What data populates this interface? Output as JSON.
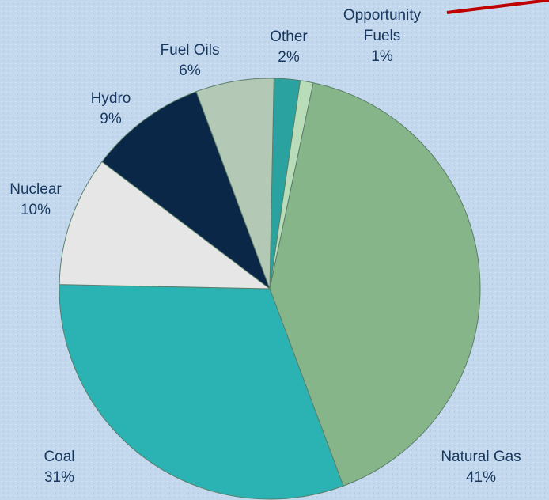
{
  "chart_data": {
    "type": "pie",
    "categories": [
      "Other",
      "Opportunity Fuels",
      "Natural Gas",
      "Coal",
      "Nuclear",
      "Hydro",
      "Fuel Oils"
    ],
    "values": [
      2,
      1,
      41,
      31,
      10,
      9,
      6
    ],
    "value_labels": [
      "2%",
      "1%",
      "41%",
      "31%",
      "10%",
      "9%",
      "6%"
    ],
    "colors": [
      "#2aa3a0",
      "#b9ddb9",
      "#86b589",
      "#2bb3b3",
      "#e6e6e6",
      "#0b2747",
      "#b3c9b5"
    ]
  }
}
